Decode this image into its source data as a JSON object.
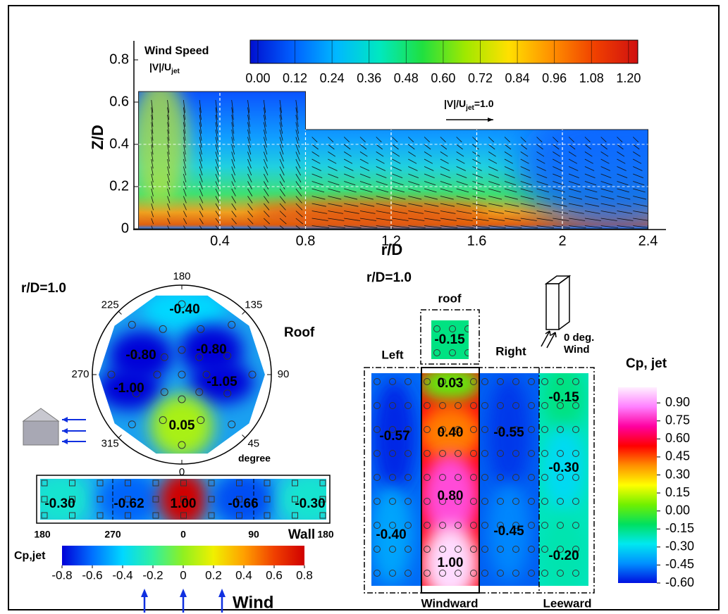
{
  "chart_data": [
    {
      "type": "vector-field",
      "xlabel": "r/D",
      "ylabel": "Z/D",
      "xlim": [
        0,
        2.48
      ],
      "ylim": [
        0,
        0.88
      ],
      "xticks": [
        0.4,
        0.8,
        1.2,
        1.6,
        2,
        2.4
      ],
      "yticks": [
        0,
        0.2,
        0.4,
        0.6,
        0.8
      ],
      "grid": true,
      "colorbar": {
        "title": "Wind Speed",
        "label": "|V|/U",
        "label_sub": "jet",
        "clim": [
          -0.025,
          1.23
        ],
        "ticks": [
          {
            "value": 0,
            "label": "0.00"
          },
          0.12,
          0.24,
          0.36,
          0.48,
          {
            "value": 0.6,
            "label": "0.60"
          },
          0.72,
          0.84,
          0.96,
          1.08,
          {
            "value": 1.2,
            "label": "1.20"
          }
        ],
        "colors": [
          "#0010d0",
          "#0060ff",
          "#00b8ff",
          "#00e8c0",
          "#20e040",
          "#a0e800",
          "#ffe000",
          "#ff9000",
          "#f04000",
          "#d01010"
        ]
      },
      "reference": {
        "label": "|V|/U",
        "label_sub": "jet",
        "value": 1.0,
        "value_label": "=1.0"
      }
    },
    {
      "type": "polar-contour",
      "title": "r/D=1.0",
      "label": "Roof",
      "theta_label": "degree",
      "theta_ticks": [
        180,
        135,
        90,
        45,
        0,
        315,
        270,
        225
      ],
      "values": [
        -0.4,
        -0.8,
        -0.8,
        -1.0,
        -1.05,
        0.05
      ],
      "value_labels": [
        "-0.40",
        "-0.80",
        "-0.80",
        "-1.00",
        "-1.05",
        "0.05"
      ],
      "wall": {
        "label": "Wall",
        "categories": [
          "180",
          "270",
          "0",
          "90",
          "180"
        ],
        "values": [
          -0.3,
          -0.62,
          1.0,
          -0.66,
          -0.3
        ],
        "value_labels": [
          "-0.30",
          "-0.62",
          "1.00",
          "-0.66",
          "-0.30"
        ]
      },
      "colorbar": {
        "title": "Cp,jet",
        "clim": [
          -0.8,
          0.8
        ],
        "ticks": [
          -0.8,
          -0.6,
          -0.4,
          -0.2,
          0,
          0.2,
          0.4,
          0.6,
          0.8
        ],
        "colors": [
          "#0000d8",
          "#0070ff",
          "#00d8ff",
          "#30f0a0",
          "#90f020",
          "#f0f000",
          "#ffa000",
          "#f04000",
          "#d00000"
        ]
      },
      "wind_label": "Wind"
    },
    {
      "type": "face-contour",
      "title": "r/D=1.0",
      "faces": [
        {
          "name": "roof",
          "values": [
            -0.15
          ],
          "value_labels": [
            "-0.15"
          ]
        },
        {
          "name": "Left",
          "values": [
            -0.57,
            -0.4
          ],
          "value_labels": [
            "-0.57",
            "-0.40"
          ]
        },
        {
          "name": "Windward",
          "values": [
            0.03,
            0.4,
            0.8,
            1.0
          ],
          "value_labels": [
            "0.03",
            "0.40",
            "0.80",
            "1.00"
          ]
        },
        {
          "name": "Right",
          "values": [
            -0.55,
            -0.45
          ],
          "value_labels": [
            "-0.55",
            "-0.45"
          ]
        },
        {
          "name": "Leeward",
          "values": [
            -0.15,
            -0.3,
            -0.2
          ],
          "value_labels": [
            "-0.15",
            "-0.30",
            "-0.20"
          ]
        }
      ],
      "wind_label": [
        "0 deg.",
        "Wind"
      ],
      "colorbar": {
        "title": "Cp, jet",
        "clim": [
          -0.6,
          1.03
        ],
        "ticks": [
          {
            "value": 0.9,
            "label": "0.90"
          },
          0.75,
          {
            "value": 0.6,
            "label": "0.60"
          },
          0.45,
          {
            "value": 0.3,
            "label": "0.30"
          },
          0.15,
          {
            "value": 0,
            "label": "0.00"
          },
          -0.15,
          {
            "value": -0.3,
            "label": "-0.30"
          },
          -0.45,
          {
            "value": -0.6,
            "label": "-0.60"
          }
        ],
        "colors": [
          "#0010e0",
          "#0090ff",
          "#00e8f0",
          "#00e060",
          "#70f000",
          "#ffff00",
          "#ff9000",
          "#ff0000",
          "#ff00a0",
          "#ff80ff",
          "#fff0ff"
        ]
      }
    }
  ]
}
